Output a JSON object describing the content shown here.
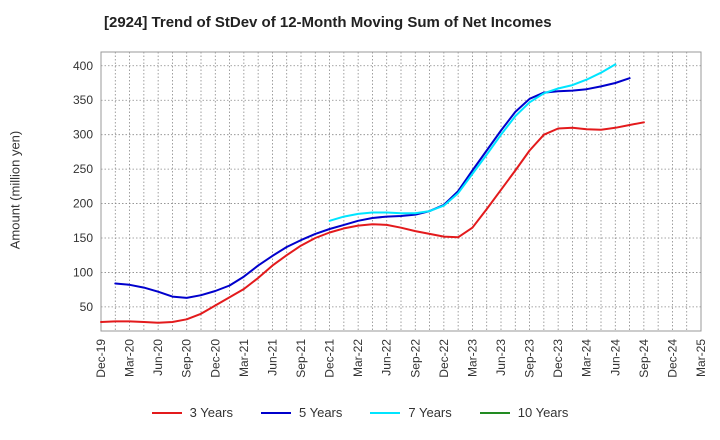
{
  "chart_data": {
    "type": "line",
    "title": "[2924]  Trend of StDev of 12-Month Moving Sum of Net Incomes",
    "ylabel": "Amount (million yen)",
    "xlabel": "",
    "ylim": [
      15,
      420
    ],
    "y_ticks": [
      50,
      100,
      150,
      200,
      250,
      300,
      350,
      400
    ],
    "x_ticks": [
      "Dec-19",
      "Mar-20",
      "Jun-20",
      "Sep-20",
      "Dec-20",
      "Mar-21",
      "Jun-21",
      "Sep-21",
      "Dec-21",
      "Mar-22",
      "Jun-22",
      "Sep-22",
      "Dec-22",
      "Mar-23",
      "Jun-23",
      "Sep-23",
      "Dec-23",
      "Mar-24",
      "Jun-24",
      "Sep-24",
      "Dec-24",
      "Mar-25"
    ],
    "grid": true,
    "legend_position": "bottom",
    "series": [
      {
        "name": "3 Years",
        "color": "#e31a1c",
        "values": [
          28,
          29,
          29,
          28,
          27,
          28,
          32,
          40,
          52,
          64,
          76,
          92,
          110,
          125,
          139,
          150,
          158,
          164,
          168,
          170,
          169,
          165,
          160,
          156,
          152,
          151,
          165,
          192,
          220,
          248,
          277,
          300,
          309,
          310,
          308,
          307,
          310,
          314,
          318
        ]
      },
      {
        "name": "5 Years",
        "color": "#0000cc",
        "values": [
          null,
          84,
          82,
          78,
          72,
          65,
          63,
          67,
          73,
          81,
          94,
          110,
          124,
          137,
          147,
          156,
          163,
          169,
          175,
          179,
          181,
          182,
          184,
          189,
          198,
          218,
          248,
          277,
          306,
          333,
          352,
          361,
          363,
          364,
          366,
          370,
          375,
          382
        ]
      },
      {
        "name": "7 Years",
        "color": "#00e5ff",
        "values": [
          null,
          null,
          null,
          null,
          null,
          null,
          null,
          null,
          null,
          null,
          null,
          null,
          null,
          null,
          null,
          null,
          175,
          181,
          185,
          187,
          187,
          186,
          186,
          189,
          197,
          215,
          243,
          271,
          300,
          327,
          347,
          360,
          367,
          372,
          380,
          390,
          402
        ]
      },
      {
        "name": "10 Years",
        "color": "#228b22",
        "values": []
      }
    ]
  }
}
